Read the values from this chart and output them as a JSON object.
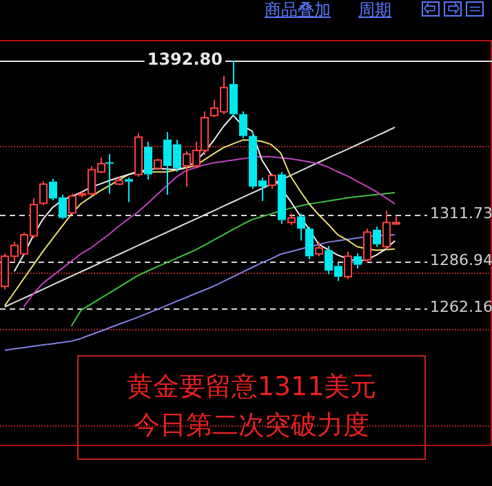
{
  "chart_data": {
    "type": "candlestick",
    "categories": [
      null,
      null,
      null,
      null,
      null,
      null,
      null,
      null,
      null,
      null,
      null,
      null,
      null,
      null,
      null,
      null,
      null,
      null,
      null,
      null,
      null,
      null,
      null,
      null,
      null,
      null,
      null,
      null,
      null,
      null,
      null,
      null,
      null,
      null,
      null,
      null,
      null,
      null,
      null,
      null,
      null,
      null
    ],
    "ohlc": [
      [
        1273.6,
        1291,
        1272,
        1289.5
      ],
      [
        1289.5,
        1297,
        1286.5,
        1295.2
      ],
      [
        1290.8,
        1302,
        1290,
        1300.9
      ],
      [
        1300.3,
        1320,
        1299,
        1316.8
      ],
      [
        1317.5,
        1329,
        1316.5,
        1327.6
      ],
      [
        1328.9,
        1330.5,
        1319,
        1320
      ],
      [
        1320.6,
        1322,
        1309,
        1309.8
      ],
      [
        1312.4,
        1322.5,
        1311.5,
        1321.3
      ],
      [
        1321.9,
        1323.5,
        1320.5,
        1322.5
      ],
      [
        1322.5,
        1337,
        1321.5,
        1335.2
      ],
      [
        1334,
        1341.6,
        1333.5,
        1338.4
      ],
      [
        1339.1,
        1343.5,
        1322.5,
        1338.4
      ],
      [
        1327.6,
        1331.5,
        1327,
        1329.5
      ],
      [
        1330.2,
        1331,
        1318.1,
        1328.9
      ],
      [
        1332.7,
        1354.5,
        1331.5,
        1352.4
      ],
      [
        1347.3,
        1350,
        1330,
        1332.7
      ],
      [
        1335.9,
        1341,
        1335,
        1340.3
      ],
      [
        1351.1,
        1355,
        1321.9,
        1337.2
      ],
      [
        1348.6,
        1351,
        1334,
        1335.9
      ],
      [
        1337.2,
        1345,
        1326.3,
        1343.5
      ],
      [
        1337.2,
        1350,
        1336,
        1345.4
      ],
      [
        1345.4,
        1366,
        1343,
        1362.6
      ],
      [
        1363.8,
        1372,
        1363,
        1367.7
      ],
      [
        1365.7,
        1384.8,
        1364.5,
        1378.5
      ],
      [
        1380.4,
        1392.8,
        1363,
        1364.5
      ],
      [
        1364.5,
        1366,
        1352,
        1353
      ],
      [
        1353,
        1355,
        1325,
        1326.3
      ],
      [
        1329.5,
        1331,
        1318.7,
        1326.3
      ],
      [
        1327,
        1333,
        1325,
        1332.1
      ],
      [
        1332.7,
        1334,
        1306.6,
        1308.6
      ],
      [
        1307.3,
        1312,
        1306,
        1309.8
      ],
      [
        1310.5,
        1312,
        1297.8,
        1304.1
      ],
      [
        1304.1,
        1305,
        1288,
        1289.5
      ],
      [
        1290.8,
        1297,
        1289.5,
        1293.9
      ],
      [
        1292.7,
        1295,
        1280,
        1281.9
      ],
      [
        1284.4,
        1286,
        1276.5,
        1278.7
      ],
      [
        1278.7,
        1292,
        1277.5,
        1289.5
      ],
      [
        1289.5,
        1291,
        1283,
        1285
      ],
      [
        1287.6,
        1304,
        1286,
        1302.2
      ],
      [
        1303.5,
        1305,
        1294.5,
        1295.8
      ],
      [
        1294.6,
        1313.6,
        1293,
        1307.3
      ],
      [
        1306.6,
        1310.5,
        1306,
        1307.3
      ]
    ],
    "series": [
      {
        "type": "line",
        "color": "#f0f0f0",
        "values": [
          null,
          1281.5,
          1290.4,
          1300.5,
          1309.0,
          1315.1,
          1319.0,
          1321.1,
          1323.2,
          1325.8,
          1327.6,
          1329.5,
          1331.1,
          1332.7,
          1334.2,
          1335.2,
          1335.8,
          1335.6,
          1335.3,
          1336.3,
          1339.1,
          1344.5,
          1351.0,
          1358.1,
          1363.9,
          1358.4,
          1355.5,
          1340.5,
          1332.6,
          1325.6,
          1318.8,
          1311.2,
          1303.5,
          1295.8,
          1292.9,
          1290.1,
          1288.3,
          1286.9,
          1287.7,
          1290.0,
          1293.2,
          1297.7
        ]
      },
      {
        "type": "line",
        "color": "#e8e070",
        "values": [
          1263.4,
          1270.5,
          1277.7,
          1284.8,
          1292.0,
          1298.6,
          1305.2,
          1311.7,
          1317.2,
          1320.6,
          1324.0,
          1326.8,
          1329.7,
          1332.6,
          1334.0,
          1334.0,
          1334.0,
          1334.0,
          1335.0,
          1336.1,
          1337.2,
          1340.5,
          1343.8,
          1346.9,
          1348.9,
          1350.9,
          1350.7,
          1350.2,
          1348.5,
          1344.0,
          1332.1,
          1324.3,
          1317.1,
          1311.4,
          1306.3,
          1300.8,
          1298.1,
          1294.6,
          1293.5,
          1292.7,
          1293.0,
          1293.3
        ]
      },
      {
        "type": "line",
        "color": "#c040c0",
        "values": [
          null,
          null,
          1262.9,
          1269.6,
          1275.2,
          1279.1,
          1283.0,
          1286.9,
          1290.8,
          1293.7,
          1297.5,
          1301.2,
          1305.5,
          1309.2,
          1312.9,
          1317.3,
          1322.0,
          1326.6,
          1331.2,
          1334.6,
          1336.2,
          1337.8,
          1338.8,
          1339.6,
          1340.3,
          1341.0,
          1341.7,
          1342.1,
          1342.0,
          1341.5,
          1341.0,
          1340.2,
          1339.3,
          1338.4,
          1336.5,
          1334.1,
          1331.9,
          1329.2,
          1326.5,
          1323.7,
          1320.5,
          1317.2
        ]
      },
      {
        "type": "line",
        "color": "#40c040",
        "values": [
          null,
          null,
          null,
          null,
          null,
          null,
          null,
          1252.6,
          1260.9,
          1264.0,
          1267.1,
          1270.1,
          1273.2,
          1276.3,
          1279.4,
          1281.7,
          1283.9,
          1286.1,
          1288.3,
          1290.5,
          1292.7,
          1295.4,
          1298.2,
          1300.9,
          1303.7,
          1306.4,
          1308.9,
          1310.4,
          1311.9,
          1313.4,
          1314.8,
          1316.0,
          1317.1,
          1317.9,
          1318.7,
          1319.5,
          1320.3,
          1320.9,
          1321.5,
          1322.0,
          1322.5,
          1323.1
        ]
      },
      {
        "type": "line",
        "color": "#8080e0",
        "values": [
          1239.9,
          1240.6,
          1241.3,
          1242.0,
          1242.7,
          1243.3,
          1244.0,
          1244.7,
          1246.1,
          1248.0,
          1249.8,
          1251.7,
          1253.6,
          1255.5,
          1257.3,
          1259.4,
          1261.4,
          1263.5,
          1265.6,
          1267.6,
          1269.7,
          1271.7,
          1273.8,
          1276.3,
          1278.7,
          1281.2,
          1283.6,
          1286.0,
          1288.2,
          1290.6,
          1291.9,
          1293.2,
          1294.5,
          1295.7,
          1297.0,
          1297.7,
          1298.4,
          1299.1,
          1299.8,
          1300.3,
          1300.6,
          1300.9
        ]
      },
      {
        "type": "line",
        "color": "#e0e0e0",
        "values": [
          1262.8,
          1265.1,
          1267.4,
          1269.7,
          1272.0,
          1274.4,
          1276.7,
          1279.0,
          1281.3,
          1283.6,
          1285.9,
          1288.2,
          1290.5,
          1292.8,
          1295.2,
          1297.5,
          1299.8,
          1302.1,
          1304.4,
          1306.7,
          1309.0,
          1311.3,
          1313.6,
          1316.0,
          1318.3,
          1320.6,
          1322.9,
          1325.2,
          1327.5,
          1329.8,
          1332.1,
          1334.4,
          1336.8,
          1339.1,
          1341.4,
          1343.7,
          1346.0,
          1348.3,
          1350.6,
          1352.9,
          1355.2,
          1357.6
        ]
      }
    ],
    "ylim": [
      1189,
      1404
    ],
    "yticks": [
      {
        "value": 1311.73,
        "label": "1311.73"
      },
      {
        "value": 1286.94,
        "label": "1286.94"
      },
      {
        "value": 1262.16,
        "label": "1262.16"
      }
    ],
    "grid": "y",
    "ref_lines": [
      {
        "axis": "y",
        "value": 1392.8,
        "label": "1392.80",
        "color": "#e8e8e8"
      },
      {
        "axis": "y",
        "value": 1347.9,
        "color": "#b02020",
        "line_style": "dotted"
      },
      {
        "axis": "y",
        "value": 1280.6,
        "color": "#b02020",
        "line_style": "dotted"
      },
      {
        "axis": "y",
        "value": 1251.4,
        "color": "#b02020",
        "line_style": "dotted"
      },
      {
        "axis": "y",
        "value": 1200.5,
        "color": "#b02020",
        "line_style": "dotted"
      }
    ],
    "annotations": [
      "商品叠加",
      "周期",
      "黄金要留意1311美元",
      "今日第二次突破力度"
    ]
  }
}
